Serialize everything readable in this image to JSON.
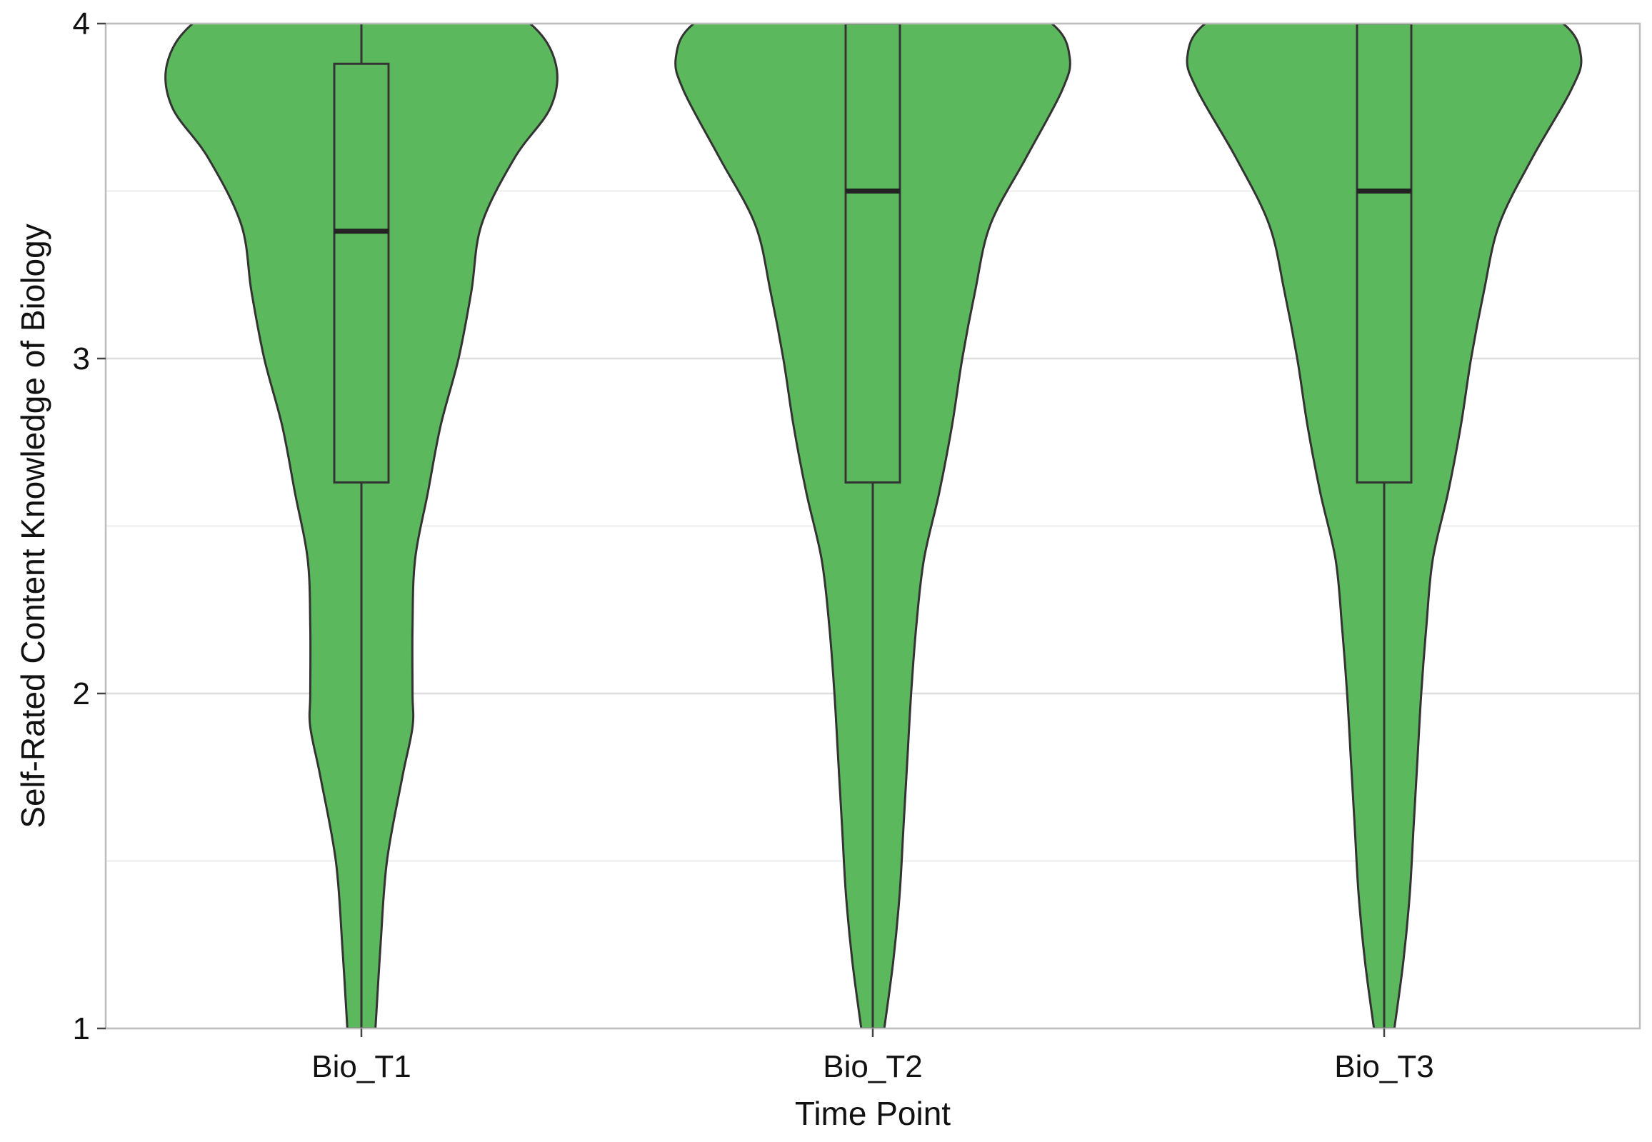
{
  "chart_data": {
    "type": "violin",
    "xlabel": "Time Point",
    "ylabel": "Self-Rated Content Knowledge of Biology",
    "ylim": [
      1,
      4
    ],
    "yticks": [
      1,
      2,
      3,
      4
    ],
    "minor_gridlines": [
      1.5,
      2.5,
      3.5
    ],
    "grid": true,
    "categories": [
      "Bio_T1",
      "Bio_T2",
      "Bio_T3"
    ],
    "fill_color": "#5cb85c",
    "stroke_color": "#333333",
    "series": [
      {
        "category": "Bio_T1",
        "box": {
          "q1": 2.63,
          "median": 3.38,
          "q3": 3.88,
          "whisker_low": 1,
          "whisker_high": 4
        },
        "density": [
          [
            1.0,
            0.055
          ],
          [
            1.25,
            0.075
          ],
          [
            1.5,
            0.1
          ],
          [
            1.75,
            0.16
          ],
          [
            1.9,
            0.2
          ],
          [
            2.0,
            0.2
          ],
          [
            2.2,
            0.2
          ],
          [
            2.4,
            0.21
          ],
          [
            2.6,
            0.26
          ],
          [
            2.8,
            0.31
          ],
          [
            3.0,
            0.38
          ],
          [
            3.2,
            0.43
          ],
          [
            3.4,
            0.47
          ],
          [
            3.6,
            0.6
          ],
          [
            3.75,
            0.74
          ],
          [
            3.88,
            0.76
          ],
          [
            4.0,
            0.66
          ]
        ]
      },
      {
        "category": "Bio_T2",
        "box": {
          "q1": 2.63,
          "median": 3.5,
          "q3": 4,
          "whisker_low": 1,
          "whisker_high": 4
        },
        "density": [
          [
            1.0,
            0.045
          ],
          [
            1.2,
            0.08
          ],
          [
            1.4,
            0.105
          ],
          [
            1.6,
            0.12
          ],
          [
            1.8,
            0.135
          ],
          [
            2.0,
            0.15
          ],
          [
            2.2,
            0.17
          ],
          [
            2.4,
            0.2
          ],
          [
            2.6,
            0.26
          ],
          [
            2.8,
            0.31
          ],
          [
            3.0,
            0.35
          ],
          [
            3.2,
            0.4
          ],
          [
            3.4,
            0.46
          ],
          [
            3.6,
            0.6
          ],
          [
            3.8,
            0.74
          ],
          [
            3.9,
            0.77
          ],
          [
            4.0,
            0.7
          ]
        ]
      },
      {
        "category": "Bio_T3",
        "box": {
          "q1": 2.63,
          "median": 3.5,
          "q3": 4,
          "whisker_low": 1,
          "whisker_high": 4
        },
        "density": [
          [
            1.0,
            0.04
          ],
          [
            1.2,
            0.075
          ],
          [
            1.4,
            0.1
          ],
          [
            1.6,
            0.115
          ],
          [
            1.8,
            0.13
          ],
          [
            2.0,
            0.145
          ],
          [
            2.2,
            0.165
          ],
          [
            2.4,
            0.19
          ],
          [
            2.6,
            0.25
          ],
          [
            2.8,
            0.3
          ],
          [
            3.0,
            0.34
          ],
          [
            3.2,
            0.39
          ],
          [
            3.4,
            0.45
          ],
          [
            3.6,
            0.58
          ],
          [
            3.8,
            0.73
          ],
          [
            3.9,
            0.77
          ],
          [
            4.0,
            0.7
          ]
        ]
      }
    ]
  }
}
